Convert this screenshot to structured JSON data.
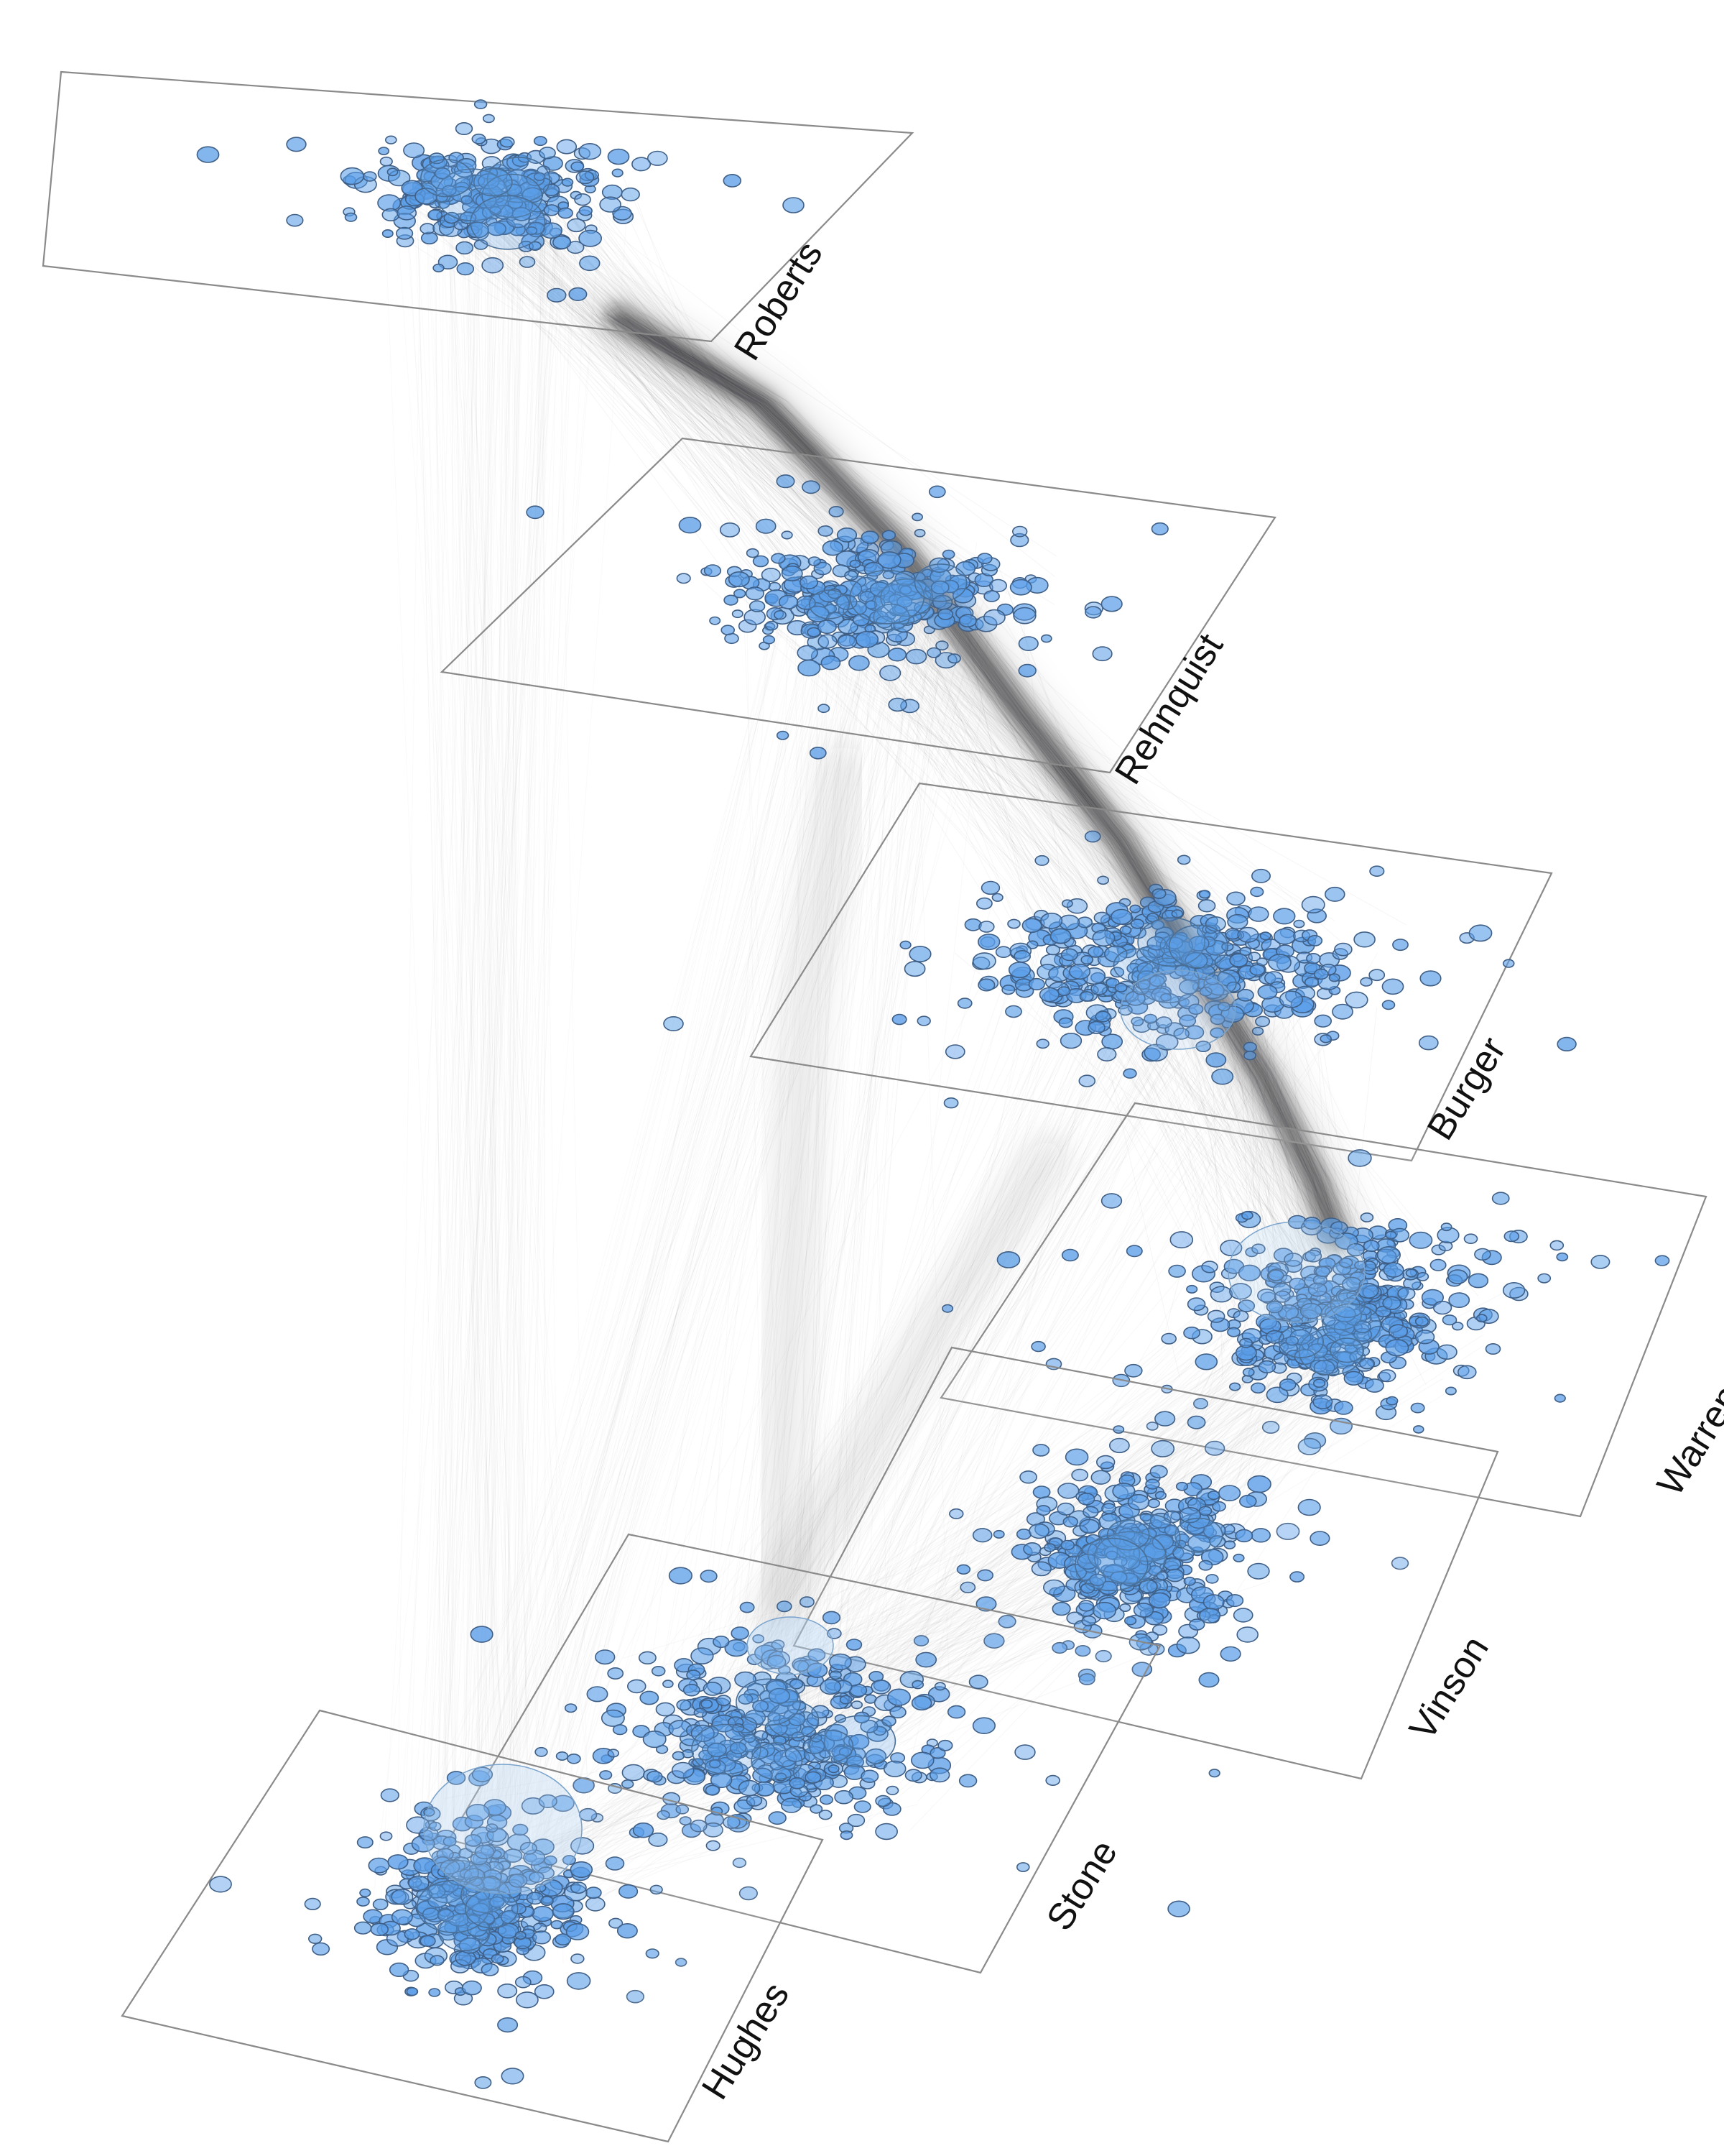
{
  "figure": {
    "planes": [
      {
        "id": "roberts",
        "label": "Roberts"
      },
      {
        "id": "rehnquist",
        "label": "Rehnquist"
      },
      {
        "id": "burger",
        "label": "Burger"
      },
      {
        "id": "warren",
        "label": "Warren"
      },
      {
        "id": "vinson",
        "label": "Vinson"
      },
      {
        "id": "stone",
        "label": "Stone"
      },
      {
        "id": "hughes",
        "label": "Hughes"
      }
    ],
    "colors": {
      "node_fill": "#5b9ee8",
      "node_stroke": "#3f5f86",
      "plane_border": "#8a8a8a",
      "edge": "#333333",
      "label_text": "#111111"
    }
  }
}
